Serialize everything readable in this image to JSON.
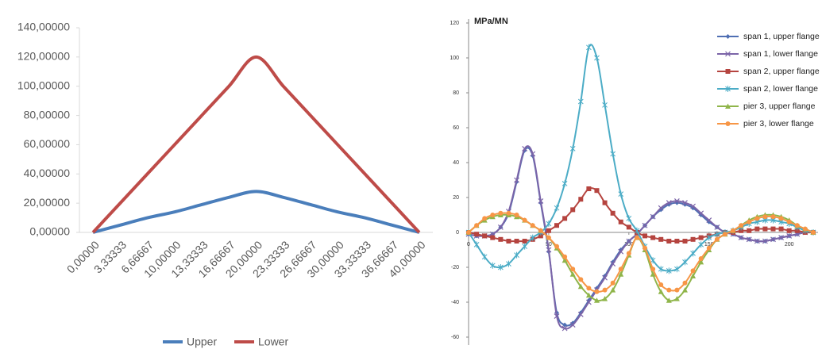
{
  "chart_data": [
    {
      "type": "line",
      "categories": [
        "0,00000",
        "3,33333",
        "6,66667",
        "10,00000",
        "13,33333",
        "16,66667",
        "20,00000",
        "23,33333",
        "26,66667",
        "30,00000",
        "33,33333",
        "36,66667",
        "40,00000"
      ],
      "series": [
        {
          "name": "Upper",
          "color": "#4a7ebb",
          "values": [
            0,
            5,
            10,
            14,
            19,
            24,
            28,
            24,
            19,
            14,
            10,
            5,
            0
          ]
        },
        {
          "name": "Lower",
          "color": "#be4b48",
          "values": [
            0,
            20,
            40,
            60,
            80,
            100,
            120,
            100,
            80,
            60,
            40,
            20,
            0
          ]
        }
      ],
      "ylim": [
        0,
        140
      ],
      "yticks": [
        {
          "value": 0,
          "label": "0,00000"
        },
        {
          "value": 20,
          "label": "20,00000"
        },
        {
          "value": 40,
          "label": "40,00000"
        },
        {
          "value": 60,
          "label": "60,00000"
        },
        {
          "value": 80,
          "label": "80,00000"
        },
        {
          "value": 100,
          "label": "100,00000"
        },
        {
          "value": 120,
          "label": "120,00000"
        },
        {
          "value": 140,
          "label": "140,00000"
        }
      ],
      "grid": false,
      "legend": "bottom"
    },
    {
      "type": "scatter-line",
      "y_label": "MPa/MN",
      "x": [
        0,
        5,
        10,
        15,
        20,
        25,
        30,
        35,
        40,
        45,
        50,
        55,
        60,
        65,
        70,
        75,
        80,
        85,
        90,
        95,
        100,
        105,
        110,
        115,
        120,
        125,
        130,
        135,
        140,
        145,
        150,
        155,
        160,
        165,
        170,
        175,
        180,
        185,
        190,
        195,
        200,
        205,
        210,
        215
      ],
      "series": [
        {
          "name": "span 1, upper flange",
          "color": "#4f6fb3",
          "marker": "diamond",
          "values": [
            -1,
            -2,
            -2,
            -1,
            3,
            11,
            29,
            47,
            44,
            17,
            -11,
            -46,
            -53,
            -52,
            -46,
            -39,
            -32,
            -25,
            -17,
            -10,
            -5,
            -1,
            4,
            9,
            13,
            16,
            17,
            16,
            14,
            10,
            6,
            3,
            0,
            -1,
            -3,
            -4,
            -5,
            -5,
            -4,
            -3,
            -2,
            -1,
            0,
            0
          ]
        },
        {
          "name": "span 1, lower flange",
          "color": "#7b64a8",
          "marker": "cross",
          "values": [
            -1,
            -2,
            -2,
            -1,
            3,
            12,
            30,
            48,
            45,
            18,
            -10,
            -48,
            -55,
            -53,
            -47,
            -40,
            -33,
            -26,
            -18,
            -11,
            -5,
            -1,
            4,
            9,
            14,
            17,
            18,
            17,
            15,
            11,
            7,
            3,
            0,
            -1,
            -3,
            -4,
            -5,
            -5,
            -4,
            -3,
            -2,
            -1,
            0,
            0
          ]
        },
        {
          "name": "span 2, upper flange",
          "color": "#b5443f",
          "marker": "square",
          "values": [
            0,
            -1,
            -2,
            -3,
            -4,
            -5,
            -5,
            -5,
            -4,
            -2,
            1,
            4,
            8,
            13,
            19,
            25,
            24,
            17,
            11,
            6,
            3,
            0,
            -2,
            -3,
            -4,
            -5,
            -5,
            -5,
            -4,
            -3,
            -2,
            -1,
            0,
            0,
            1,
            1,
            2,
            2,
            2,
            2,
            1,
            1,
            0,
            0
          ]
        },
        {
          "name": "span 2, lower flange",
          "color": "#4bacc6",
          "marker": "star",
          "values": [
            0,
            -7,
            -14,
            -19,
            -20,
            -18,
            -13,
            -8,
            -3,
            0,
            5,
            14,
            28,
            48,
            75,
            106,
            100,
            73,
            45,
            22,
            8,
            1,
            -8,
            -16,
            -21,
            -22,
            -21,
            -17,
            -12,
            -7,
            -3,
            -1,
            0,
            1,
            3,
            5,
            6,
            7,
            7,
            6,
            5,
            3,
            1,
            0
          ]
        },
        {
          "name": "pier 3, upper flange",
          "color": "#8fb54a",
          "marker": "triangle",
          "values": [
            0,
            4,
            7,
            9,
            10,
            10,
            9,
            7,
            4,
            1,
            -3,
            -9,
            -16,
            -24,
            -31,
            -36,
            -39,
            -38,
            -33,
            -24,
            -13,
            -3,
            -10,
            -24,
            -34,
            -39,
            -38,
            -33,
            -25,
            -17,
            -10,
            -4,
            -1,
            1,
            4,
            7,
            9,
            10,
            10,
            9,
            7,
            4,
            2,
            0
          ]
        },
        {
          "name": "pier 3, lower flange",
          "color": "#f79646",
          "marker": "circle",
          "values": [
            0,
            4,
            8,
            10,
            11,
            11,
            10,
            7,
            4,
            1,
            -3,
            -8,
            -14,
            -21,
            -27,
            -32,
            -34,
            -33,
            -29,
            -21,
            -12,
            -3,
            -9,
            -21,
            -30,
            -33,
            -33,
            -29,
            -22,
            -15,
            -9,
            -4,
            -1,
            1,
            4,
            6,
            8,
            9,
            9,
            8,
            6,
            4,
            2,
            0
          ]
        }
      ],
      "xlim": [
        0,
        218
      ],
      "xticks": [
        0,
        50,
        100,
        150,
        200
      ],
      "ylim": [
        -60,
        120
      ],
      "yticks": [
        -60,
        -40,
        -20,
        0,
        20,
        40,
        60,
        80,
        100,
        120
      ],
      "grid": false,
      "legend": "top-right"
    }
  ]
}
